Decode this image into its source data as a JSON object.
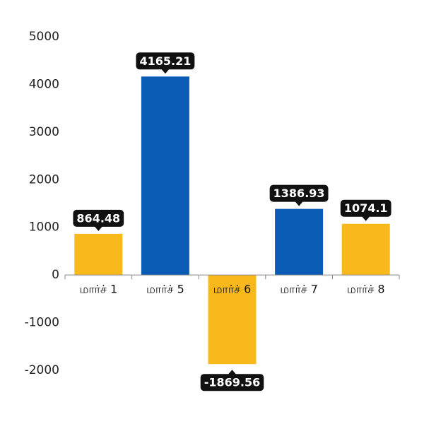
{
  "chart_data": {
    "type": "bar",
    "categories": [
      "மார்ச் 1",
      "மார்ச் 5",
      "மார்ச் 6",
      "மார்ச் 7",
      "மார்ச் 8"
    ],
    "values": [
      864.48,
      4165.21,
      -1869.56,
      1386.93,
      1074.1
    ],
    "colors": [
      "#f9b81b",
      "#0b5cb5",
      "#f9b81b",
      "#0b5cb5",
      "#f9b81b"
    ],
    "ylim": [
      -2000,
      5000
    ],
    "yticks": [
      -2000,
      -1000,
      0,
      1000,
      2000,
      3000,
      4000,
      5000
    ],
    "grid": false
  }
}
